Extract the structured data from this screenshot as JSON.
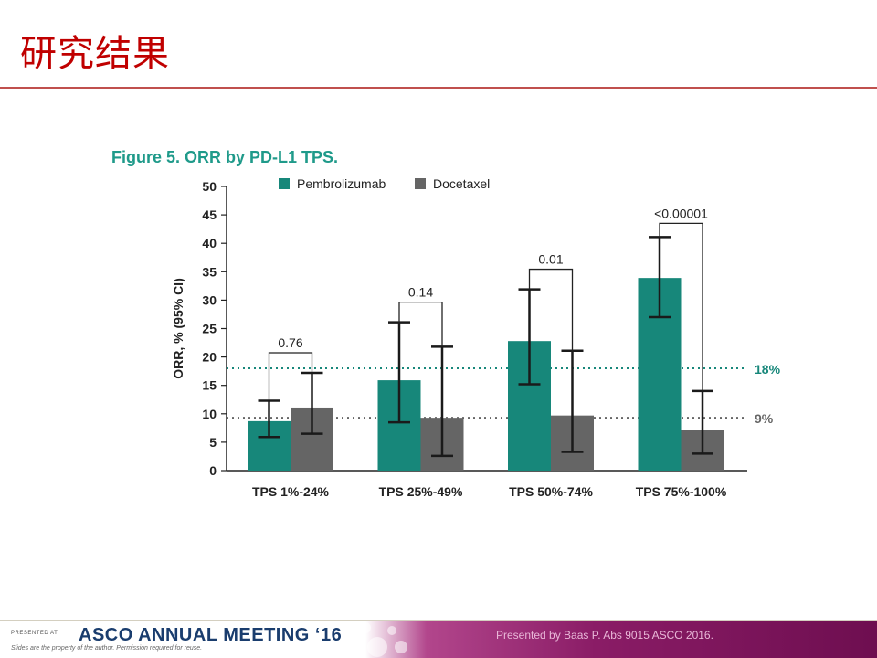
{
  "slide": {
    "title": "研究结果"
  },
  "figure": {
    "title": "Figure 5. ORR by PD-L1 TPS."
  },
  "chart_data": {
    "type": "bar",
    "ylabel": "ORR, % (95% CI)",
    "xlabel": "",
    "ylim": [
      0,
      50
    ],
    "yticks": [
      0,
      5,
      10,
      15,
      20,
      25,
      30,
      35,
      40,
      45,
      50
    ],
    "grid": false,
    "legend_position": "top",
    "categories": [
      "TPS 1%-24%",
      "TPS 25%-49%",
      "TPS 50%-74%",
      "TPS 75%-100%"
    ],
    "series": [
      {
        "name": "Pembrolizumab",
        "color": "#17877a",
        "values": [
          8.7,
          15.9,
          22.8,
          33.9
        ],
        "ci_low": [
          5.9,
          8.5,
          15.2,
          27.0
        ],
        "ci_high": [
          12.3,
          26.1,
          31.9,
          41.1
        ]
      },
      {
        "name": "Docetaxel",
        "color": "#656565",
        "values": [
          11.1,
          9.3,
          9.7,
          7.1
        ],
        "ci_low": [
          6.5,
          2.6,
          3.3,
          3.0
        ],
        "ci_high": [
          17.2,
          21.8,
          21.1,
          14.0
        ]
      }
    ],
    "comparisons": [
      "0.76",
      "0.14",
      "0.01",
      "<0.00001"
    ],
    "reference_lines": [
      {
        "label": "18%",
        "value": 18,
        "color": "#17877a"
      },
      {
        "label": "9%",
        "value": 9.3,
        "color": "#656565"
      }
    ]
  },
  "footer": {
    "presented_at": "PRESENTED AT:",
    "meeting": "ASCO ANNUAL MEETING ‘16",
    "note": "Slides are the property of the author. Permission required for reuse.",
    "credit": "Presented by Baas P. Abs 9015 ASCO 2016."
  }
}
